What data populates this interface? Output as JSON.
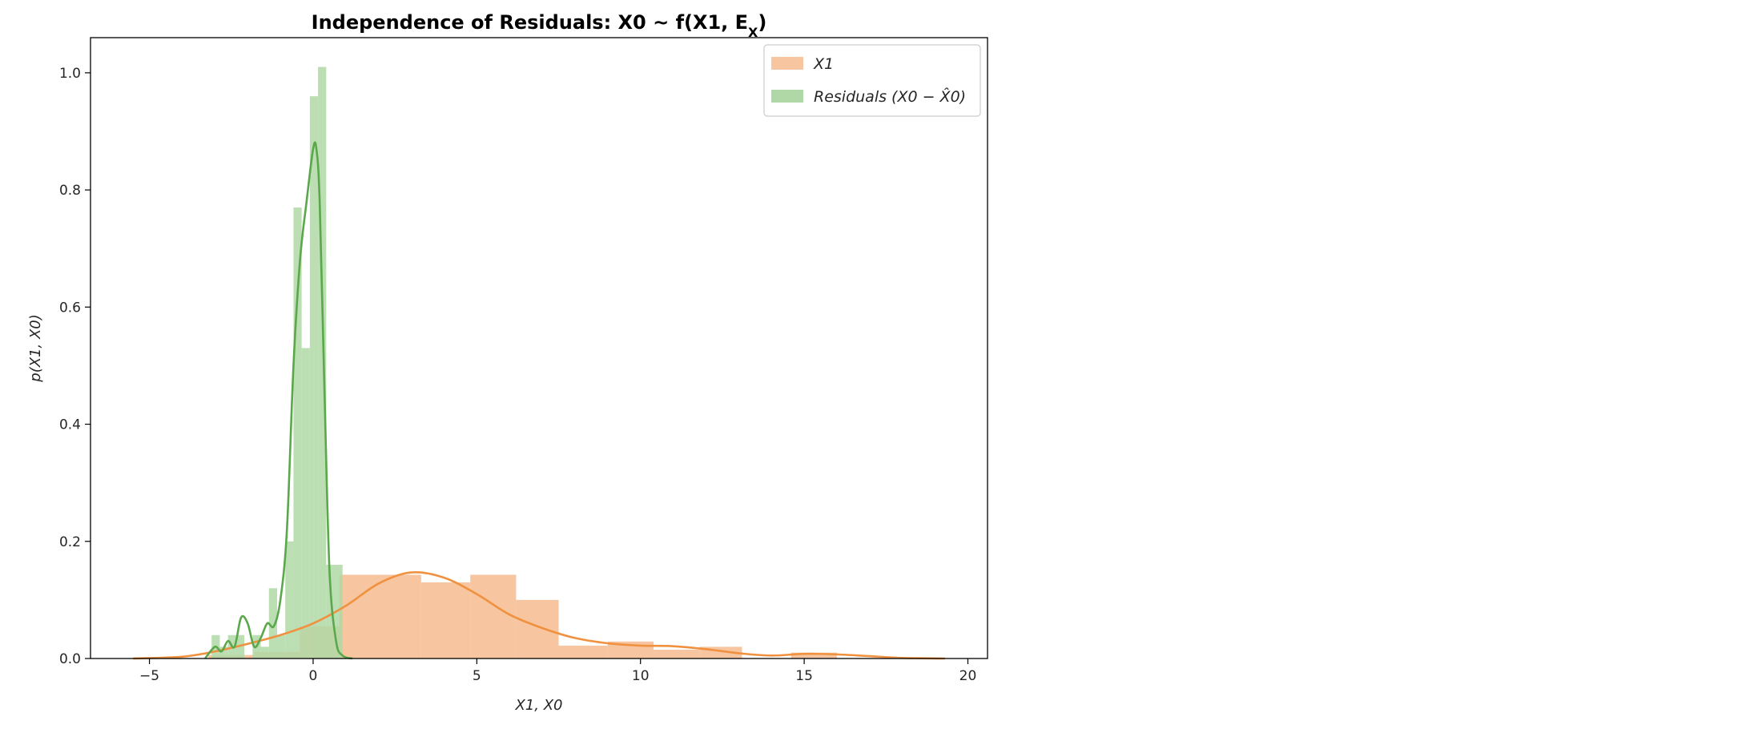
{
  "chart_data": {
    "type": "histogram_kde",
    "title": "Independence of Residuals:  X0 ~ f(X1, E_X)",
    "xlabel": "X1,  X0",
    "ylabel": "p(X1,  X0)",
    "xlim": [
      -6.8,
      20.6
    ],
    "ylim": [
      0,
      1.06
    ],
    "xticks": [
      -5,
      0,
      5,
      10,
      15,
      20
    ],
    "yticks": [
      0.0,
      0.2,
      0.4,
      0.6,
      0.8,
      1.0
    ],
    "xtick_labels": [
      "−5",
      "0",
      "5",
      "10",
      "15",
      "20"
    ],
    "ytick_labels": [
      "0.0",
      "0.2",
      "0.4",
      "0.6",
      "0.8",
      "1.0"
    ],
    "legend": {
      "position": "upper right",
      "entries": [
        {
          "label": "X1",
          "color": "#f7c59f"
        },
        {
          "label": "Residuals (X0 − X̂0)",
          "color": "#b0d8a6"
        }
      ]
    },
    "series": [
      {
        "name": "X1",
        "bar_color": "#f7c59f",
        "line_color": "#f0913f",
        "bin_edges": [
          -3.2,
          -1.8,
          -0.4,
          0.8,
          3.3,
          4.8,
          6.2,
          7.5,
          9.0,
          10.4,
          11.8,
          13.1,
          14.6,
          16.0
        ],
        "counts": [
          0.006,
          0.011,
          0.055,
          0.143,
          0.13,
          0.143,
          0.1,
          0.022,
          0.029,
          0.015,
          0.02,
          0.0,
          0.01
        ],
        "kde_x": [
          -5.5,
          -4,
          -3,
          -2,
          -1,
          0,
          1,
          2,
          3,
          4,
          5,
          6,
          7,
          8,
          9,
          10,
          11,
          12,
          13,
          14,
          15,
          16,
          17,
          18,
          19.3
        ],
        "kde_y": [
          0.0,
          0.003,
          0.012,
          0.025,
          0.04,
          0.06,
          0.09,
          0.128,
          0.147,
          0.138,
          0.11,
          0.075,
          0.052,
          0.035,
          0.026,
          0.022,
          0.021,
          0.016,
          0.009,
          0.005,
          0.008,
          0.007,
          0.004,
          0.001,
          0.0
        ]
      },
      {
        "name": "Residuals (X0 − X̂0)",
        "bar_color": "#b0d8a6",
        "line_color": "#5aa84b",
        "bin_edges": [
          -3.1,
          -2.85,
          -2.6,
          -2.35,
          -2.1,
          -1.85,
          -1.6,
          -1.35,
          -1.1,
          -0.85,
          -0.6,
          -0.35,
          -0.1,
          0.15,
          0.4,
          0.65,
          0.9
        ],
        "counts": [
          0.04,
          0.02,
          0.04,
          0.04,
          0.0,
          0.04,
          0.02,
          0.12,
          0.04,
          0.2,
          0.77,
          0.53,
          0.96,
          1.01,
          0.16,
          0.16
        ],
        "kde_x": [
          -3.3,
          -3.0,
          -2.8,
          -2.6,
          -2.4,
          -2.2,
          -2.0,
          -1.8,
          -1.6,
          -1.4,
          -1.2,
          -1.0,
          -0.8,
          -0.6,
          -0.4,
          -0.2,
          0.0,
          0.1,
          0.2,
          0.35,
          0.5,
          0.7,
          0.9,
          1.2
        ],
        "kde_y": [
          0.0,
          0.02,
          0.012,
          0.03,
          0.02,
          0.07,
          0.06,
          0.02,
          0.035,
          0.06,
          0.055,
          0.1,
          0.22,
          0.5,
          0.68,
          0.78,
          0.87,
          0.87,
          0.78,
          0.45,
          0.15,
          0.03,
          0.005,
          0.0
        ]
      }
    ]
  }
}
